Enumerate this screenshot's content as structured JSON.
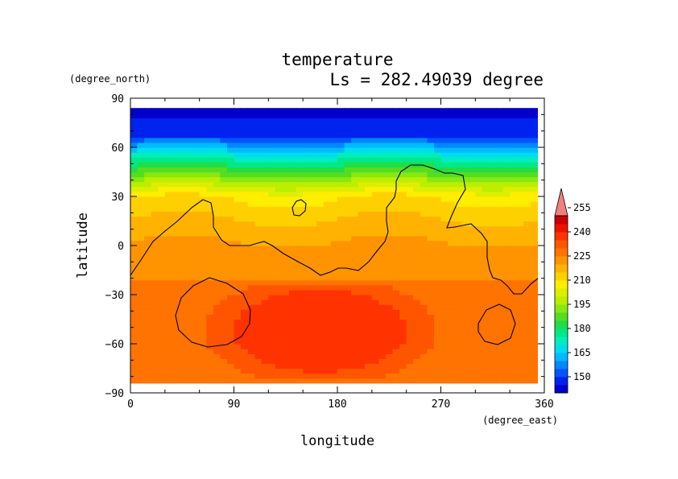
{
  "chart_data": {
    "type": "heatmap",
    "title": "temperature",
    "subtitle": "Ls = 282.49039 degree",
    "xlabel": "longitude",
    "ylabel": "latitude",
    "x_unit": "(degree_east)",
    "y_unit": "(degree_north)",
    "xlim": [
      0,
      360
    ],
    "ylim": [
      -90,
      90
    ],
    "x_ticks": [
      "0",
      "90",
      "180",
      "270",
      "360"
    ],
    "y_ticks": [
      "90",
      "60",
      "30",
      "0",
      "−30",
      "−60",
      "−90"
    ],
    "colorbar": {
      "min": 142.5,
      "step": 5,
      "colors": [
        "#0000cc",
        "#0022ee",
        "#0055ff",
        "#0088ff",
        "#00bbff",
        "#00ddee",
        "#00eebb",
        "#00e888",
        "#22dd44",
        "#55dd22",
        "#88e811",
        "#bbee00",
        "#ddee00",
        "#ffee00",
        "#ffd000",
        "#ffb300",
        "#ff9300",
        "#ff7300",
        "#ff5500",
        "#ff3300",
        "#ee1100",
        "#cc0000"
      ],
      "labels": [
        "150",
        "165",
        "180",
        "195",
        "210",
        "225",
        "240",
        "255"
      ],
      "overflow_color": "#f08080"
    },
    "field_bands": [
      {
        "lat": [
          60,
          85
        ],
        "temp": [
          148,
          160
        ]
      },
      {
        "lat": [
          30,
          60
        ],
        "temp": [
          165,
          205
        ]
      },
      {
        "lat": [
          0,
          30
        ],
        "temp": [
          210,
          222
        ]
      },
      {
        "lat": [
          -30,
          0
        ],
        "temp": [
          222,
          228
        ]
      },
      {
        "lat": [
          -85,
          -30
        ],
        "temp": [
          230,
          245
        ]
      }
    ],
    "contour_color": "#000000"
  }
}
